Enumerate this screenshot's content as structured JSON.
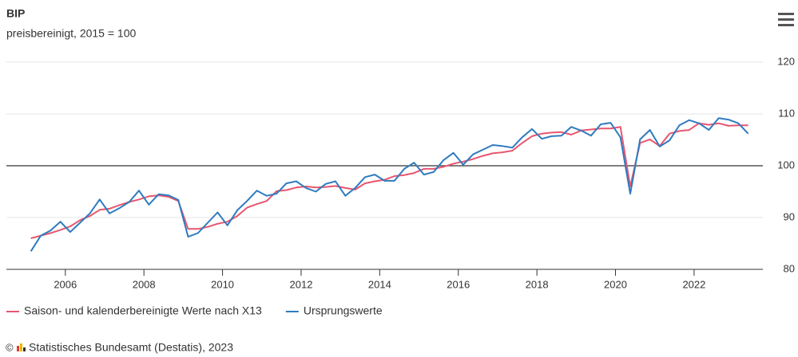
{
  "chart_data": {
    "type": "line",
    "title": "BIP",
    "subtitle": "preisbereinigt, 2015 = 100",
    "credits": "Statistisches Bundesamt (Destatis), 2023",
    "x": [
      2005.125,
      2005.375,
      2005.625,
      2005.875,
      2006.125,
      2006.375,
      2006.625,
      2006.875,
      2007.125,
      2007.375,
      2007.625,
      2007.875,
      2008.125,
      2008.375,
      2008.625,
      2008.875,
      2009.125,
      2009.375,
      2009.625,
      2009.875,
      2010.125,
      2010.375,
      2010.625,
      2010.875,
      2011.125,
      2011.375,
      2011.625,
      2011.875,
      2012.125,
      2012.375,
      2012.625,
      2012.875,
      2013.125,
      2013.375,
      2013.625,
      2013.875,
      2014.125,
      2014.375,
      2014.625,
      2014.875,
      2015.125,
      2015.375,
      2015.625,
      2015.875,
      2016.125,
      2016.375,
      2016.625,
      2016.875,
      2017.125,
      2017.375,
      2017.625,
      2017.875,
      2018.125,
      2018.375,
      2018.625,
      2018.875,
      2019.125,
      2019.375,
      2019.625,
      2019.875,
      2020.125,
      2020.375,
      2020.625,
      2020.875,
      2021.125,
      2021.375,
      2021.625,
      2021.875,
      2022.125,
      2022.375,
      2022.625,
      2022.875,
      2023.125,
      2023.375
    ],
    "series": [
      {
        "name": "Saison- und kalenderbereinigte Werte nach X13",
        "color": "#e8566f",
        "values": [
          86,
          86.5,
          87,
          87.6,
          88.3,
          89.5,
          90.3,
          91.5,
          91.7,
          92.4,
          93,
          93.5,
          94.1,
          94.3,
          94,
          93.2,
          87.8,
          87.8,
          88.2,
          88.8,
          89.2,
          90.3,
          91.9,
          92.6,
          93.2,
          95.1,
          95.3,
          95.8,
          96,
          95.8,
          95.9,
          96.1,
          95.7,
          95.4,
          96.6,
          97,
          97.3,
          98,
          98.2,
          98.6,
          99.4,
          99.4,
          99.8,
          100.4,
          100.8,
          101.3,
          101.9,
          102.4,
          102.6,
          102.9,
          104.4,
          105.7,
          106.2,
          106.4,
          106.5,
          106,
          106.8,
          107,
          107.2,
          107.2,
          107.5,
          96,
          104.4,
          105.1,
          103.8,
          106.2,
          106.7,
          106.9,
          108.2,
          107.9,
          108.2,
          107.7,
          107.8,
          107.8
        ]
      },
      {
        "name": "Ursprungswerte",
        "color": "#2f7bbf",
        "values": [
          83.5,
          86.5,
          87.5,
          89.2,
          87.2,
          89,
          90.8,
          93.5,
          90.8,
          91.8,
          93,
          95.2,
          92.5,
          94.5,
          94.3,
          93.4,
          86.3,
          87,
          89,
          91,
          88.5,
          91.4,
          93.2,
          95.2,
          94.2,
          94.6,
          96.6,
          97,
          95.7,
          95,
          96.5,
          97,
          94.2,
          95.7,
          97.8,
          98.3,
          97.1,
          97.1,
          99.4,
          100.6,
          98.3,
          98.8,
          101.1,
          102.5,
          100.2,
          102.2,
          103.1,
          104,
          103.8,
          103.5,
          105.5,
          107.1,
          105.2,
          105.7,
          105.8,
          107.5,
          106.8,
          105.8,
          108,
          108.3,
          105.5,
          94.6,
          105.1,
          106.9,
          103.7,
          104.9,
          107.8,
          108.8,
          108.2,
          106.9,
          109.2,
          108.9,
          108.2,
          106.2
        ]
      }
    ],
    "xlim": [
      2004.5,
      2023.75
    ],
    "xticks": [
      2006,
      2008,
      2010,
      2012,
      2014,
      2016,
      2018,
      2020,
      2022
    ],
    "ylim": [
      80,
      120
    ],
    "yticks": [
      80,
      90,
      100,
      110,
      120
    ],
    "reference_line": 100,
    "grid": true
  }
}
